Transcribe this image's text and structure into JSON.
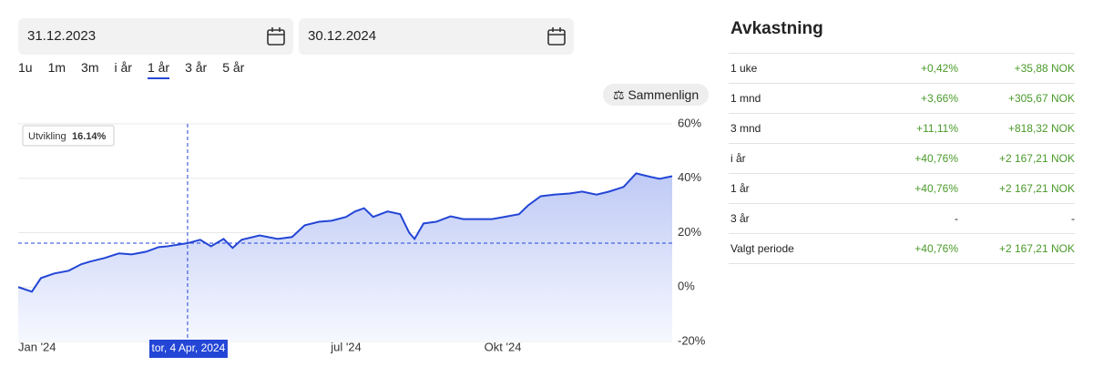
{
  "date_from": "31.12.2023",
  "date_to": "30.12.2024",
  "periods": [
    "1u",
    "1m",
    "3m",
    "i år",
    "1 år",
    "3 år",
    "5 år"
  ],
  "selected_period": 4,
  "compare_button": "Sammenlign",
  "chart_data": {
    "type": "line",
    "x": [
      0,
      7.6,
      12.6,
      20,
      28,
      35,
      40,
      48,
      56,
      63,
      71,
      78,
      83,
      94,
      101,
      107,
      114,
      119,
      124,
      134,
      144,
      152,
      159,
      167,
      174,
      182,
      187,
      192,
      197,
      205,
      212,
      217,
      220,
      225,
      232,
      240,
      247,
      255,
      263,
      270,
      278,
      283,
      290,
      298,
      306,
      313,
      321,
      328,
      336,
      343,
      351,
      356,
      363
    ],
    "series": [
      {
        "name": "Utvikling",
        "color": "#2346d6",
        "values": [
          0,
          -1.7,
          3.3,
          5,
          6,
          8.4,
          9.4,
          10.7,
          12.4,
          12,
          13,
          14.7,
          15,
          16.14,
          17.4,
          15,
          17.7,
          14.4,
          17.4,
          19,
          17.7,
          18.4,
          22.7,
          24,
          24.4,
          25.8,
          27.8,
          29,
          25.8,
          27.8,
          26.8,
          20,
          17.7,
          23.4,
          24,
          26,
          25,
          25,
          25,
          25.8,
          26.8,
          30,
          33.4,
          34,
          34.4,
          35.1,
          34,
          35.1,
          36.8,
          41.8,
          40.5,
          39.8,
          40.76
        ]
      }
    ],
    "xlim": [
      0,
      363
    ],
    "xticks": [
      {
        "value": 0,
        "label": "Jan '24"
      },
      {
        "value": 182,
        "label": "jul '24"
      },
      {
        "value": 269,
        "label": "Okt '24"
      }
    ],
    "ylim": [
      -20,
      60
    ],
    "yticks": [
      {
        "value": -20,
        "label": "-20%"
      },
      {
        "value": 0,
        "label": "0%"
      },
      {
        "value": 20,
        "label": "20%"
      },
      {
        "value": 40,
        "label": "40%"
      },
      {
        "value": 60,
        "label": "60%"
      }
    ],
    "grid": true,
    "annotation": {
      "x": 94,
      "value": 16.14,
      "label": "Utvikling",
      "value_label": "16.14%",
      "date_label": "tor, 4 Apr, 2024"
    }
  },
  "returns": {
    "title": "Avkastning",
    "rows": [
      [
        "1 uke",
        "+0,42%",
        "+35,88 NOK"
      ],
      [
        "1 mnd",
        "+3,66%",
        "+305,67 NOK"
      ],
      [
        "3 mnd",
        "+11,11%",
        "+818,32 NOK"
      ],
      [
        "i år",
        "+40,76%",
        "+2 167,21 NOK"
      ],
      [
        "1 år",
        "+40,76%",
        "+2 167,21 NOK"
      ],
      [
        "3 år",
        "-",
        "-"
      ],
      [
        "Valgt periode",
        "+40,76%",
        "+2 167,21 NOK"
      ]
    ]
  }
}
